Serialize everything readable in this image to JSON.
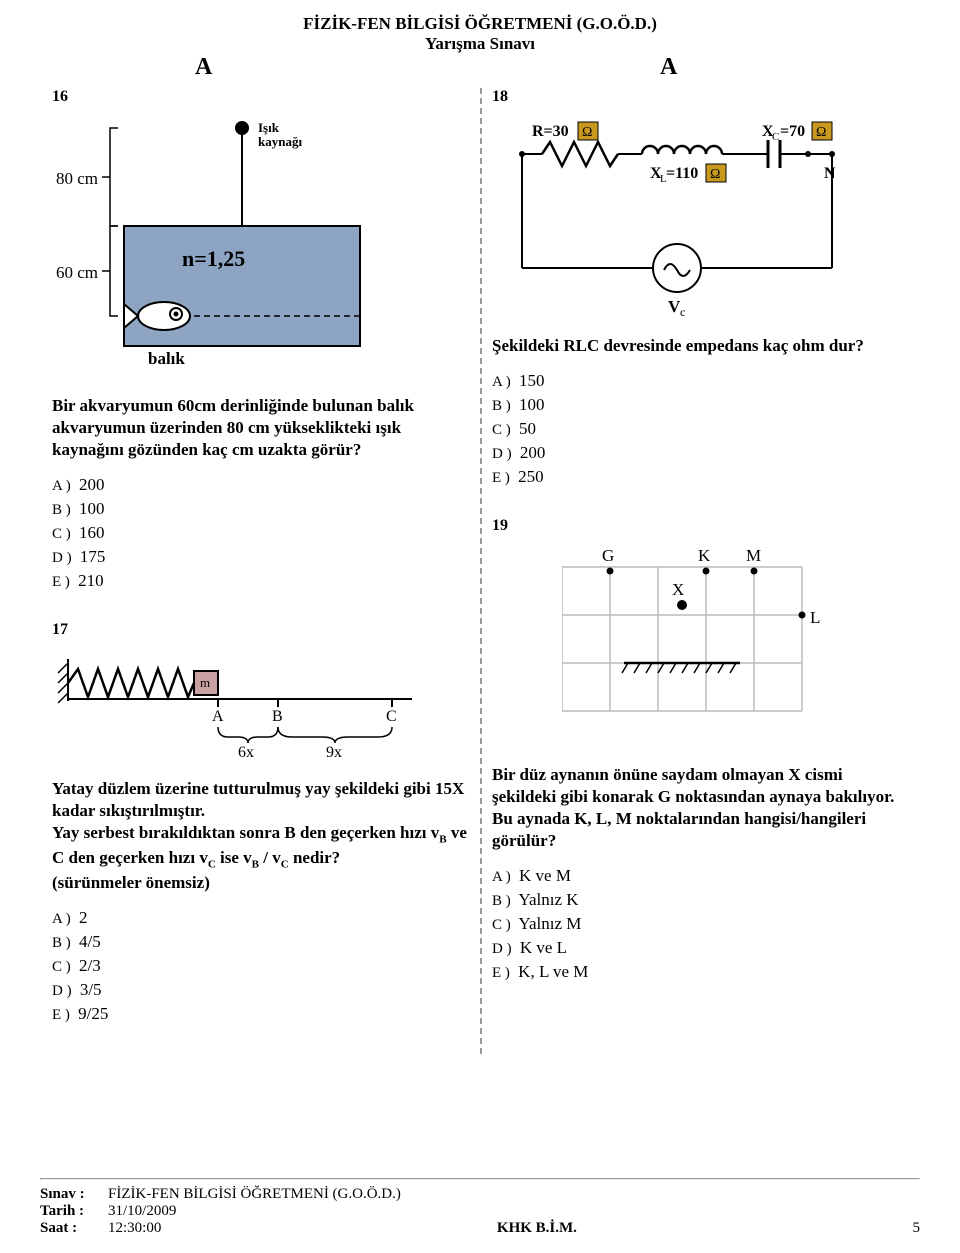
{
  "header": {
    "title_line1": "FİZİK-FEN BİLGİSİ ÖĞRETMENİ (G.O.Ö.D.)",
    "title_line2": "Yarışma Sınavı",
    "col_marker": "A"
  },
  "q16": {
    "num": "16",
    "fig": {
      "light_label": "Işık\nkaynağı",
      "height_label": "80 cm",
      "depth_label": "60 cm",
      "medium_label": "n=1,25",
      "fish_label": "balık",
      "tank_fill": "#8da4c2",
      "outline": "#000000"
    },
    "text": "Bir akvaryumun 60cm derinliğinde bulunan balık akvaryumun üzerinden 80 cm yükseklikteki ışık kaynağını gözünden kaç cm uzakta görür?",
    "opts": {
      "A": "200",
      "B": "100",
      "C": "160",
      "D": "175",
      "E": "210"
    }
  },
  "q17": {
    "num": "17",
    "fig": {
      "block_label": "m",
      "segA": "A",
      "segB": "B",
      "segC": "C",
      "len1": "6x",
      "len2": "9x"
    },
    "text_html": "Yatay düzlem üzerine tutturulmuş yay şekildeki gibi 15X kadar sıkıştırılmıştır.\nYay serbest bırakıldıktan sonra B den geçerken hızı v<sub>B</sub>  ve C den geçerken hızı v<sub>C</sub>  ise v<sub>B</sub> / v<sub>C</sub> nedir?\n(sürünmeler önemsiz)",
    "opts": {
      "A": "2",
      "B": "4/5",
      "C": "2/3",
      "D": "3/5",
      "E": "9/25"
    }
  },
  "q18": {
    "num": "18",
    "fig": {
      "R_label": "R=30",
      "R_val": 30,
      "Xc_label": "X",
      "Xc_sub": "C",
      "Xc_eq": "=70",
      "Xc_val": 70,
      "Xl_label": "X",
      "Xl_sub": "L",
      "Xl_eq": "=110",
      "Xl_val": 110,
      "N_label": "N",
      "Vc_label": "V",
      "Vc_sub": "c",
      "ohm": "Ω"
    },
    "text": "Şekildeki RLC devresinde empedans kaç ohm dur?",
    "opts": {
      "A": "150",
      "B": "100",
      "C": "50",
      "D": "200",
      "E": "250"
    }
  },
  "q19": {
    "num": "19",
    "fig": {
      "G": "G",
      "K": "K",
      "M": "M",
      "X": "X",
      "L": "L",
      "grid_color": "#bcbcbc"
    },
    "text": "Bir düz aynanın önüne saydam olmayan X cismi şekildeki gibi konarak G noktasından aynaya bakılıyor. Bu aynada K, L, M noktalarından hangisi/hangileri görülür?",
    "opts": {
      "A": "K ve M",
      "B": "Yalnız K",
      "C": "Yalnız M",
      "D": "K ve L",
      "E": "K, L ve M"
    }
  },
  "footer": {
    "exam_lbl": "Sınav :",
    "exam_val": "FİZİK-FEN BİLGİSİ ÖĞRETMENİ (G.O.Ö.D.)",
    "date_lbl": "Tarih :",
    "date_val": "31/10/2009",
    "time_lbl": "Saat :",
    "time_val": "12:30:00",
    "center": "KHK B.İ.M.",
    "page": "5"
  }
}
